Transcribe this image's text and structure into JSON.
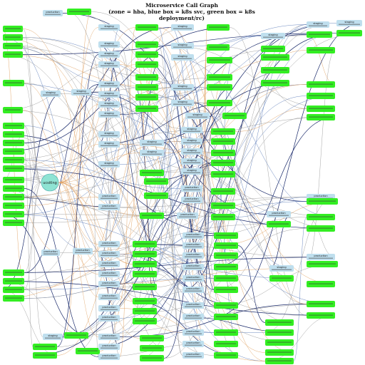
{
  "title": "Microservice Call Graph",
  "subtitle": "(zone = hba, blue box = k8s svc, green box = k8s deployment/rc)",
  "colors": {
    "svc_box": "#bfdfee",
    "deployment_box": "#33ee22",
    "center_node": "#8fe3d3",
    "edge_dark": "#1a2a6b",
    "edge_gray": "#9a9a9a",
    "edge_orange": "#e0a060",
    "edge_blue": "#5a7ab8"
  },
  "center_node": {
    "label": "ucsitlng"
  },
  "node_labels": {
    "staging": "staging",
    "production": "production"
  }
}
